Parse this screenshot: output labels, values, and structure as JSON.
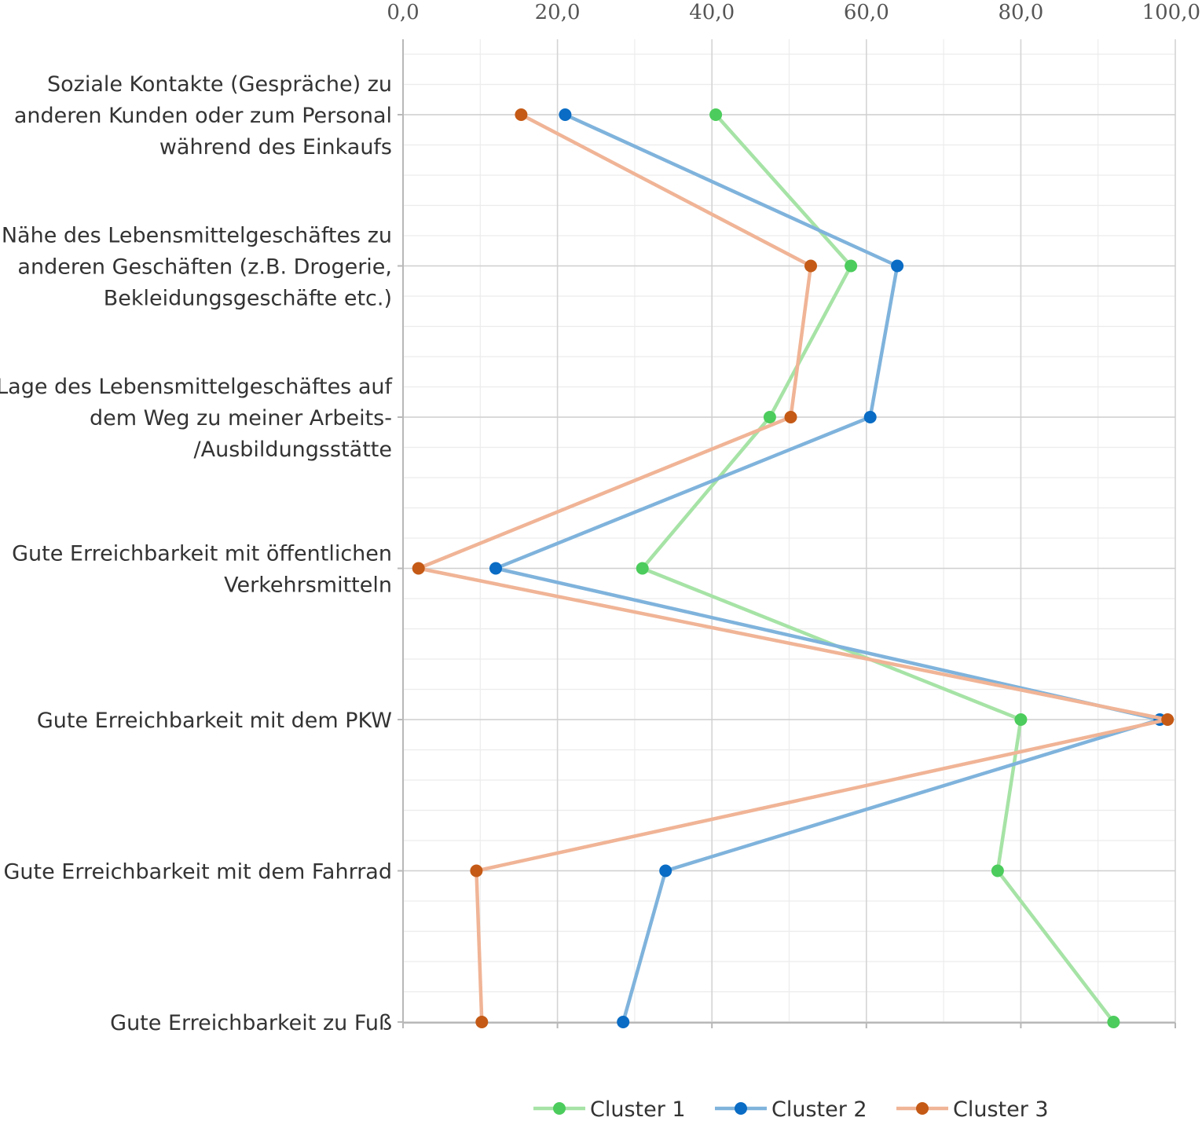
{
  "chart_data": {
    "type": "line",
    "orientation": "horizontal-values",
    "title": "",
    "xlabel": "",
    "ylabel": "",
    "xlim": [
      0,
      100
    ],
    "x_ticks": [
      "0,0",
      "20,0",
      "40,0",
      "60,0",
      "80,0",
      "100,0"
    ],
    "x_axis_position": "top",
    "grid": true,
    "legend_position": "bottom",
    "categories": [
      [
        "Soziale Kontakte (Gespräche) zu",
        "anderen Kunden oder zum Personal",
        "während des Einkaufs"
      ],
      [
        "Nähe des Lebensmittelgeschäftes zu",
        "anderen Geschäften (z.B. Drogerie,",
        "Bekleidungsgeschäfte etc.)"
      ],
      [
        "Lage des Lebensmittelgeschäftes auf",
        "dem Weg zu meiner Arbeits-",
        "/Ausbildungsstätte"
      ],
      [
        "Gute Erreichbarkeit mit öffentlichen",
        "Verkehrsmitteln"
      ],
      [
        "Gute Erreichbarkeit mit dem PKW"
      ],
      [
        "Gute Erreichbarkeit mit dem Fahrrad"
      ],
      [
        "Gute Erreichbarkeit zu Fuß"
      ]
    ],
    "series": [
      {
        "name": "Cluster 1",
        "line_color": "#a6e3a6",
        "marker_color": "#4ccc5c",
        "values": [
          40.5,
          58.0,
          47.5,
          31.0,
          80.0,
          77.0,
          92.0
        ]
      },
      {
        "name": "Cluster 2",
        "line_color": "#7fb3dc",
        "marker_color": "#0a6cc4",
        "values": [
          21.0,
          64.0,
          60.5,
          12.0,
          98.0,
          34.0,
          28.5
        ]
      },
      {
        "name": "Cluster 3",
        "line_color": "#f0b496",
        "marker_color": "#c45a16",
        "values": [
          15.3,
          52.8,
          50.2,
          2.0,
          99.0,
          9.5,
          10.2
        ]
      }
    ]
  }
}
